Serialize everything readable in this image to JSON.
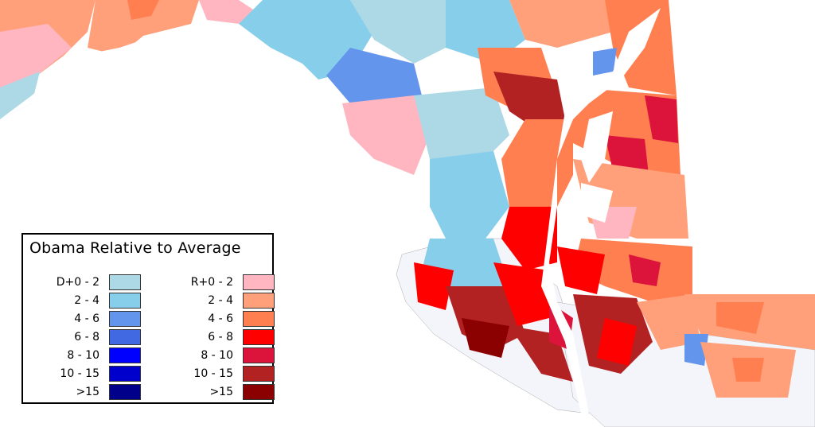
{
  "legend": {
    "title": "Obama Relative to Average",
    "democratic": [
      {
        "label": "D+0  -  2",
        "color": "#add8e6"
      },
      {
        "label": "2  -  4",
        "color": "#87ceeb"
      },
      {
        "label": "4  -  6",
        "color": "#6495ed"
      },
      {
        "label": "6  -  8",
        "color": "#4169e1"
      },
      {
        "label": "8  - 10",
        "color": "#0000ff"
      },
      {
        "label": "10 - 15",
        "color": "#0000cd"
      },
      {
        "label": ">15",
        "color": "#00008b"
      }
    ],
    "republican": [
      {
        "label": "R+0  -  2",
        "color": "#ffb6c1"
      },
      {
        "label": "2  -  4",
        "color": "#ffa07a"
      },
      {
        "label": "4  -  6",
        "color": "#ff7f50"
      },
      {
        "label": "6  -  8",
        "color": "#ff0000"
      },
      {
        "label": "8  - 10",
        "color": "#dc143c"
      },
      {
        "label": "10 - 15",
        "color": "#b22222"
      },
      {
        "label": ">15",
        "color": "#8b0000"
      }
    ]
  },
  "map": {
    "background_color": "#ffffff",
    "water_color": "#f4f5fb"
  }
}
